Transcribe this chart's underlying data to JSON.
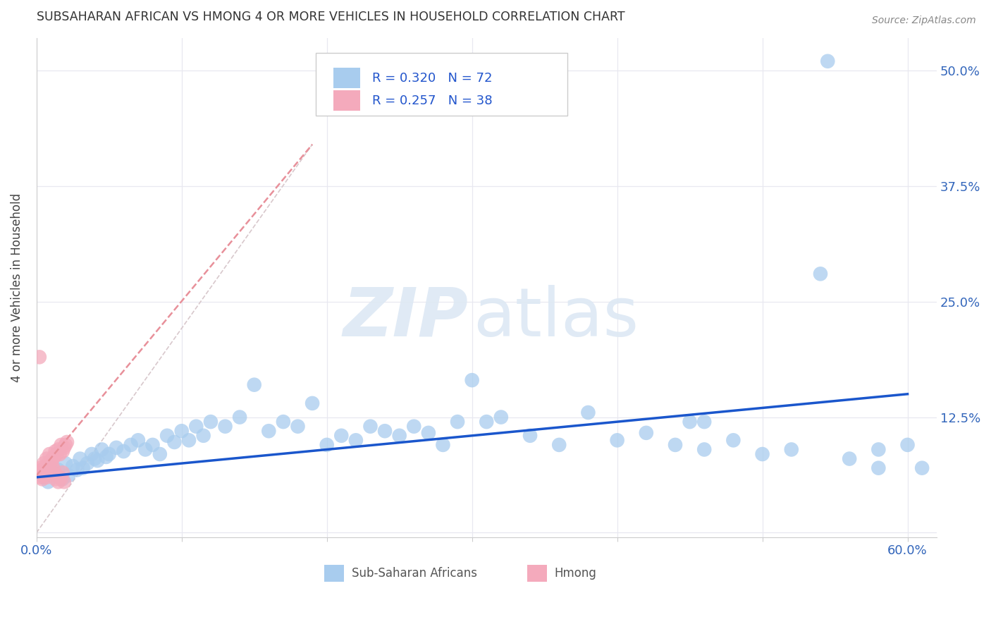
{
  "title": "SUBSAHARAN AFRICAN VS HMONG 4 OR MORE VEHICLES IN HOUSEHOLD CORRELATION CHART",
  "source": "Source: ZipAtlas.com",
  "ylabel": "4 or more Vehicles in Household",
  "xlim": [
    0.0,
    0.62
  ],
  "ylim": [
    -0.005,
    0.535
  ],
  "xtick_positions": [
    0.0,
    0.1,
    0.2,
    0.3,
    0.4,
    0.5,
    0.6
  ],
  "xtick_labels": [
    "0.0%",
    "",
    "",
    "",
    "",
    "",
    "60.0%"
  ],
  "ytick_positions": [
    0.0,
    0.125,
    0.25,
    0.375,
    0.5
  ],
  "ytick_labels": [
    "",
    "12.5%",
    "25.0%",
    "37.5%",
    "50.0%"
  ],
  "r_blue": 0.32,
  "n_blue": 72,
  "r_pink": 0.257,
  "n_pink": 38,
  "blue_fill": "#A8CCEE",
  "pink_fill": "#F4AABC",
  "trend_blue": "#1A56CC",
  "trend_pink": "#E8909A",
  "ref_color": "#D8C8CC",
  "grid_color": "#E8E8F0",
  "legend_label_blue": "Sub-Saharan Africans",
  "legend_label_pink": "Hmong",
  "blue_scatter_x": [
    0.005,
    0.008,
    0.01,
    0.012,
    0.015,
    0.018,
    0.02,
    0.022,
    0.025,
    0.028,
    0.03,
    0.032,
    0.035,
    0.038,
    0.04,
    0.042,
    0.045,
    0.048,
    0.05,
    0.055,
    0.06,
    0.065,
    0.07,
    0.075,
    0.08,
    0.085,
    0.09,
    0.095,
    0.1,
    0.105,
    0.11,
    0.115,
    0.12,
    0.13,
    0.14,
    0.15,
    0.16,
    0.17,
    0.18,
    0.19,
    0.2,
    0.21,
    0.22,
    0.23,
    0.24,
    0.25,
    0.26,
    0.27,
    0.28,
    0.29,
    0.3,
    0.31,
    0.32,
    0.34,
    0.36,
    0.38,
    0.4,
    0.42,
    0.44,
    0.46,
    0.48,
    0.5,
    0.52,
    0.54,
    0.56,
    0.58,
    0.6,
    0.61,
    0.58,
    0.545,
    0.45,
    0.46
  ],
  "blue_scatter_y": [
    0.06,
    0.055,
    0.07,
    0.065,
    0.068,
    0.058,
    0.075,
    0.062,
    0.072,
    0.068,
    0.08,
    0.07,
    0.075,
    0.085,
    0.08,
    0.078,
    0.09,
    0.082,
    0.085,
    0.092,
    0.088,
    0.095,
    0.1,
    0.09,
    0.095,
    0.085,
    0.105,
    0.098,
    0.11,
    0.1,
    0.115,
    0.105,
    0.12,
    0.115,
    0.125,
    0.16,
    0.11,
    0.12,
    0.115,
    0.14,
    0.095,
    0.105,
    0.1,
    0.115,
    0.11,
    0.105,
    0.115,
    0.108,
    0.095,
    0.12,
    0.165,
    0.12,
    0.125,
    0.105,
    0.095,
    0.13,
    0.1,
    0.108,
    0.095,
    0.09,
    0.1,
    0.085,
    0.09,
    0.28,
    0.08,
    0.09,
    0.095,
    0.07,
    0.07,
    0.51,
    0.12,
    0.12
  ],
  "pink_scatter_x": [
    0.002,
    0.003,
    0.004,
    0.005,
    0.006,
    0.007,
    0.008,
    0.009,
    0.01,
    0.011,
    0.012,
    0.013,
    0.014,
    0.015,
    0.016,
    0.017,
    0.018,
    0.019,
    0.02,
    0.021,
    0.003,
    0.004,
    0.005,
    0.006,
    0.007,
    0.008,
    0.009,
    0.01,
    0.011,
    0.012,
    0.013,
    0.014,
    0.015,
    0.016,
    0.017,
    0.018,
    0.019,
    0.002
  ],
  "pink_scatter_y": [
    0.065,
    0.07,
    0.068,
    0.075,
    0.07,
    0.08,
    0.075,
    0.085,
    0.078,
    0.08,
    0.082,
    0.088,
    0.085,
    0.09,
    0.085,
    0.095,
    0.088,
    0.092,
    0.095,
    0.098,
    0.06,
    0.058,
    0.062,
    0.065,
    0.06,
    0.068,
    0.07,
    0.065,
    0.072,
    0.068,
    0.058,
    0.062,
    0.055,
    0.06,
    0.058,
    0.065,
    0.055,
    0.19
  ],
  "blue_trend_x0": 0.0,
  "blue_trend_y0": 0.06,
  "blue_trend_x1": 0.6,
  "blue_trend_y1": 0.15,
  "pink_trend_x0": 0.0,
  "pink_trend_y0": 0.062,
  "pink_trend_x1": 0.19,
  "pink_trend_y1": 0.42,
  "ref_line_x0": 0.0,
  "ref_line_y0": 0.0,
  "ref_line_x1": 0.19,
  "ref_line_y1": 0.42
}
